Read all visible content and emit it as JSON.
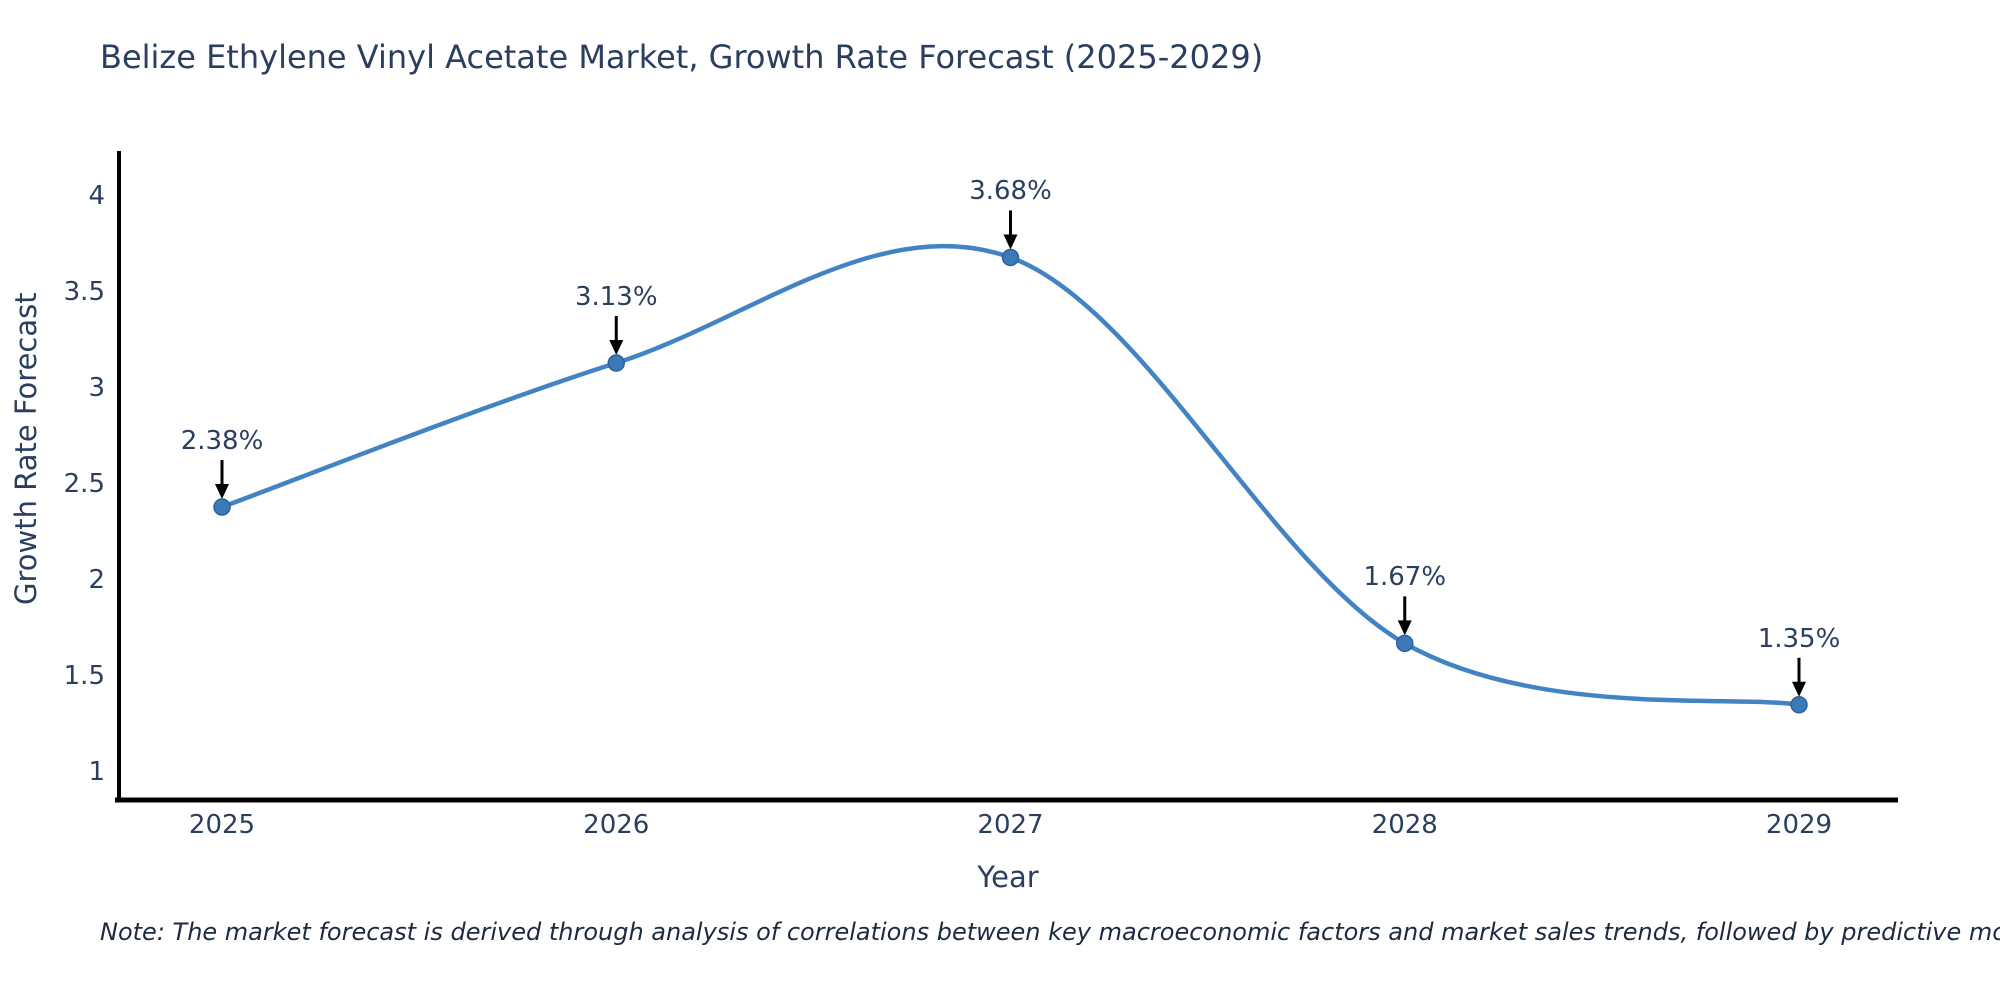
{
  "title": "Belize Ethylene Vinyl Acetate Market, Growth Rate Forecast (2025-2029)",
  "chart_data": {
    "type": "line",
    "title": "Belize Ethylene Vinyl Acetate Market, Growth Rate Forecast (2025-2029)",
    "x": [
      2025,
      2026,
      2027,
      2028,
      2029
    ],
    "values": [
      2.38,
      3.13,
      3.68,
      1.67,
      1.35
    ],
    "point_labels": [
      "2.38%",
      "3.13%",
      "3.68%",
      "1.67%",
      "1.35%"
    ],
    "xticklabels": [
      "2025",
      "2026",
      "2027",
      "2028",
      "2029"
    ],
    "yticks": [
      1,
      1.5,
      2,
      2.5,
      3,
      3.5,
      4
    ],
    "ylim": [
      0.85,
      4.2
    ],
    "xlabel": "Year",
    "ylabel": "Growth Rate Forecast",
    "grid": false,
    "legend_position": "none",
    "line_color": "#4283c3",
    "marker_color": "#3b79b7",
    "marker_edge_color": "#2d629c",
    "axis_color": "#000000",
    "text_color": "#2a3f5f",
    "annotation_arrow_color": "#000000"
  },
  "note": "Note: The market forecast is derived through analysis of correlations between key macroeconomic factors and market sales trends, followed by predictive modeling to project future sales"
}
